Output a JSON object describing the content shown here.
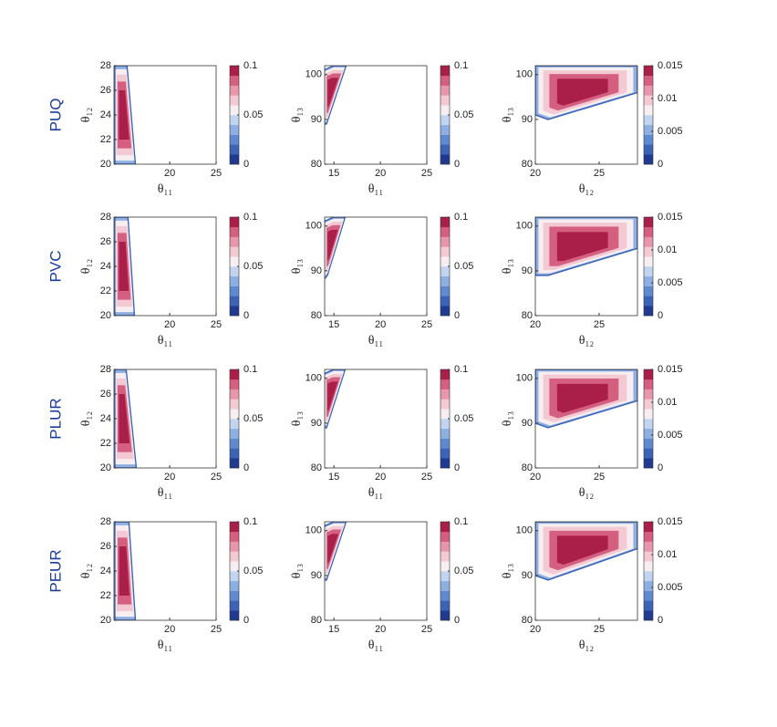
{
  "rows": [
    "PUQ",
    "PVC",
    "PLUR",
    "PEUR"
  ],
  "chart_data": [
    {
      "type": "density",
      "x_label": "θ₁₁",
      "y_label": "θ₁₂",
      "xlim": [
        14,
        25
      ],
      "ylim": [
        20,
        28
      ],
      "xticks": [
        20,
        25
      ],
      "yticks": [
        20,
        22,
        24,
        26,
        28
      ],
      "outline": {
        "x": [
          14.1,
          16.3,
          15.4,
          14.1
        ],
        "y": [
          20,
          20,
          28,
          28
        ]
      },
      "colorbar": {
        "lim": [
          0,
          0.1
        ],
        "ticks": [
          0,
          0.05,
          0.1
        ],
        "colors": [
          "#1f3a8f",
          "#3b64b6",
          "#5f8ad0",
          "#8eafe2",
          "#c2d5f0",
          "#f7eef1",
          "#f3c9d3",
          "#e796ac",
          "#d45f80",
          "#a91f4a"
        ]
      }
    },
    {
      "type": "density",
      "x_label": "θ₁₁",
      "y_label": "θ₁₃",
      "xlim": [
        14,
        25
      ],
      "ylim": [
        80,
        102
      ],
      "xticks": [
        15,
        20,
        25
      ],
      "yticks": [
        80,
        90,
        100
      ],
      "outline": {
        "x": [
          13.9,
          14.2,
          16.3,
          15.0,
          13.9
        ],
        "y": [
          89,
          89,
          102,
          102,
          101
        ]
      },
      "colorbar": {
        "lim": [
          0,
          0.1
        ],
        "ticks": [
          0,
          0.05,
          0.1
        ],
        "colors": [
          "#1f3a8f",
          "#3b64b6",
          "#5f8ad0",
          "#8eafe2",
          "#c2d5f0",
          "#f7eef1",
          "#f3c9d3",
          "#e796ac",
          "#d45f80",
          "#a91f4a"
        ]
      }
    },
    {
      "type": "density",
      "x_label": "θ₁₂",
      "y_label": "θ₁₃",
      "xlim": [
        20,
        28
      ],
      "ylim": [
        80,
        102
      ],
      "xticks": [
        20,
        25
      ],
      "yticks": [
        80,
        90,
        100
      ],
      "outline": {
        "x": [
          20,
          21,
          28,
          28,
          20
        ],
        "y": [
          91,
          90,
          96,
          102,
          102
        ]
      },
      "colorbar": {
        "lim": [
          0,
          0.015
        ],
        "ticks": [
          0,
          0.005,
          0.01,
          0.015
        ],
        "colors": [
          "#1f3a8f",
          "#3b64b6",
          "#5f8ad0",
          "#8eafe2",
          "#c2d5f0",
          "#f7eef1",
          "#f3c9d3",
          "#e796ac",
          "#d45f80",
          "#a91f4a"
        ]
      }
    },
    {
      "type": "density",
      "x_label": "θ₁₁",
      "y_label": "θ₁₂",
      "xlim": [
        14,
        25
      ],
      "ylim": [
        20,
        28
      ],
      "xticks": [
        20,
        25
      ],
      "yticks": [
        20,
        22,
        24,
        26,
        28
      ],
      "outline": {
        "x": [
          14.1,
          16.2,
          15.5,
          14.1
        ],
        "y": [
          20,
          20,
          28,
          28
        ]
      },
      "colorbar": {
        "lim": [
          0,
          0.1
        ],
        "ticks": [
          0,
          0.05,
          0.1
        ],
        "colors": [
          "#1f3a8f",
          "#3b64b6",
          "#5f8ad0",
          "#8eafe2",
          "#c2d5f0",
          "#f7eef1",
          "#f3c9d3",
          "#e796ac",
          "#d45f80",
          "#a91f4a"
        ]
      }
    },
    {
      "type": "density",
      "x_label": "θ₁₁",
      "y_label": "θ₁₃",
      "xlim": [
        14,
        25
      ],
      "ylim": [
        80,
        102
      ],
      "xticks": [
        15,
        20,
        25
      ],
      "yticks": [
        80,
        90,
        100
      ],
      "outline": {
        "x": [
          13.9,
          14.3,
          16.2,
          15.0,
          13.9
        ],
        "y": [
          88,
          89,
          102,
          102,
          101
        ]
      },
      "colorbar": {
        "lim": [
          0,
          0.1
        ],
        "ticks": [
          0,
          0.05,
          0.1
        ],
        "colors": [
          "#1f3a8f",
          "#3b64b6",
          "#5f8ad0",
          "#8eafe2",
          "#c2d5f0",
          "#f7eef1",
          "#f3c9d3",
          "#e796ac",
          "#d45f80",
          "#a91f4a"
        ]
      }
    },
    {
      "type": "density",
      "x_label": "θ₁₂",
      "y_label": "θ₁₃",
      "xlim": [
        20,
        28
      ],
      "ylim": [
        80,
        102
      ],
      "xticks": [
        20,
        25
      ],
      "yticks": [
        80,
        90,
        100
      ],
      "outline": {
        "x": [
          20,
          21,
          28,
          28,
          20
        ],
        "y": [
          89,
          89,
          95,
          102,
          102
        ]
      },
      "colorbar": {
        "lim": [
          0,
          0.015
        ],
        "ticks": [
          0,
          0.005,
          0.01,
          0.015
        ],
        "colors": [
          "#1f3a8f",
          "#3b64b6",
          "#5f8ad0",
          "#8eafe2",
          "#c2d5f0",
          "#f7eef1",
          "#f3c9d3",
          "#e796ac",
          "#d45f80",
          "#a91f4a"
        ]
      }
    },
    {
      "type": "density",
      "x_label": "θ₁₁",
      "y_label": "θ₁₂",
      "xlim": [
        14,
        25
      ],
      "ylim": [
        20,
        28
      ],
      "xticks": [
        20,
        25
      ],
      "yticks": [
        20,
        22,
        24,
        26,
        28
      ],
      "outline": {
        "x": [
          14.1,
          16.4,
          15.3,
          14.1
        ],
        "y": [
          20,
          20,
          28,
          28
        ]
      },
      "colorbar": {
        "lim": [
          0,
          0.1
        ],
        "ticks": [
          0,
          0.05,
          0.1
        ],
        "colors": [
          "#1f3a8f",
          "#3b64b6",
          "#5f8ad0",
          "#8eafe2",
          "#c2d5f0",
          "#f7eef1",
          "#f3c9d3",
          "#e796ac",
          "#d45f80",
          "#a91f4a"
        ]
      }
    },
    {
      "type": "density",
      "x_label": "θ₁₁",
      "y_label": "θ₁₃",
      "xlim": [
        14,
        25
      ],
      "ylim": [
        80,
        102
      ],
      "xticks": [
        15,
        20,
        25
      ],
      "yticks": [
        80,
        90,
        100
      ],
      "outline": {
        "x": [
          13.9,
          14.2,
          16.2,
          15.0,
          13.9
        ],
        "y": [
          89,
          89,
          102,
          102,
          101
        ]
      },
      "colorbar": {
        "lim": [
          0,
          0.1
        ],
        "ticks": [
          0,
          0.05,
          0.1
        ],
        "colors": [
          "#1f3a8f",
          "#3b64b6",
          "#5f8ad0",
          "#8eafe2",
          "#c2d5f0",
          "#f7eef1",
          "#f3c9d3",
          "#e796ac",
          "#d45f80",
          "#a91f4a"
        ]
      }
    },
    {
      "type": "density",
      "x_label": "θ₁₂",
      "y_label": "θ₁₃",
      "xlim": [
        20,
        28
      ],
      "ylim": [
        80,
        102
      ],
      "xticks": [
        20,
        25
      ],
      "yticks": [
        80,
        90,
        100
      ],
      "outline": {
        "x": [
          20,
          21,
          28,
          28,
          20
        ],
        "y": [
          90,
          89,
          95,
          102,
          102
        ]
      },
      "colorbar": {
        "lim": [
          0,
          0.015
        ],
        "ticks": [
          0,
          0.005,
          0.01,
          0.015
        ],
        "colors": [
          "#1f3a8f",
          "#3b64b6",
          "#5f8ad0",
          "#8eafe2",
          "#c2d5f0",
          "#f7eef1",
          "#f3c9d3",
          "#e796ac",
          "#d45f80",
          "#a91f4a"
        ]
      }
    },
    {
      "type": "density",
      "x_label": "θ₁₁",
      "y_label": "θ₁₂",
      "xlim": [
        14,
        25
      ],
      "ylim": [
        20,
        28
      ],
      "xticks": [
        20,
        25
      ],
      "yticks": [
        20,
        22,
        24,
        26,
        28
      ],
      "outline": {
        "x": [
          14.1,
          16.3,
          15.6,
          14.1
        ],
        "y": [
          20,
          20,
          28,
          28
        ]
      },
      "colorbar": {
        "lim": [
          0,
          0.1
        ],
        "ticks": [
          0,
          0.05,
          0.1
        ],
        "colors": [
          "#1f3a8f",
          "#3b64b6",
          "#5f8ad0",
          "#8eafe2",
          "#c2d5f0",
          "#f7eef1",
          "#f3c9d3",
          "#e796ac",
          "#d45f80",
          "#a91f4a"
        ]
      }
    },
    {
      "type": "density",
      "x_label": "θ₁₁",
      "y_label": "θ₁₃",
      "xlim": [
        14,
        25
      ],
      "ylim": [
        80,
        102
      ],
      "xticks": [
        15,
        20,
        25
      ],
      "yticks": [
        80,
        90,
        100
      ],
      "outline": {
        "x": [
          13.9,
          14.2,
          16.3,
          15.0,
          13.9
        ],
        "y": [
          89,
          89,
          102,
          102,
          101
        ]
      },
      "colorbar": {
        "lim": [
          0,
          0.1
        ],
        "ticks": [
          0,
          0.05,
          0.1
        ],
        "colors": [
          "#1f3a8f",
          "#3b64b6",
          "#5f8ad0",
          "#8eafe2",
          "#c2d5f0",
          "#f7eef1",
          "#f3c9d3",
          "#e796ac",
          "#d45f80",
          "#a91f4a"
        ]
      }
    },
    {
      "type": "density",
      "x_label": "θ₁₂",
      "y_label": "θ₁₃",
      "xlim": [
        20,
        28
      ],
      "ylim": [
        80,
        102
      ],
      "xticks": [
        20,
        25
      ],
      "yticks": [
        80,
        90,
        100
      ],
      "outline": {
        "x": [
          20,
          21,
          28,
          28,
          20
        ],
        "y": [
          90,
          89,
          96,
          102,
          102
        ]
      },
      "colorbar": {
        "lim": [
          0,
          0.015
        ],
        "ticks": [
          0,
          0.005,
          0.01,
          0.015
        ],
        "colors": [
          "#1f3a8f",
          "#3b64b6",
          "#5f8ad0",
          "#8eafe2",
          "#c2d5f0",
          "#f7eef1",
          "#f3c9d3",
          "#e796ac",
          "#d45f80",
          "#a91f4a"
        ]
      }
    }
  ]
}
